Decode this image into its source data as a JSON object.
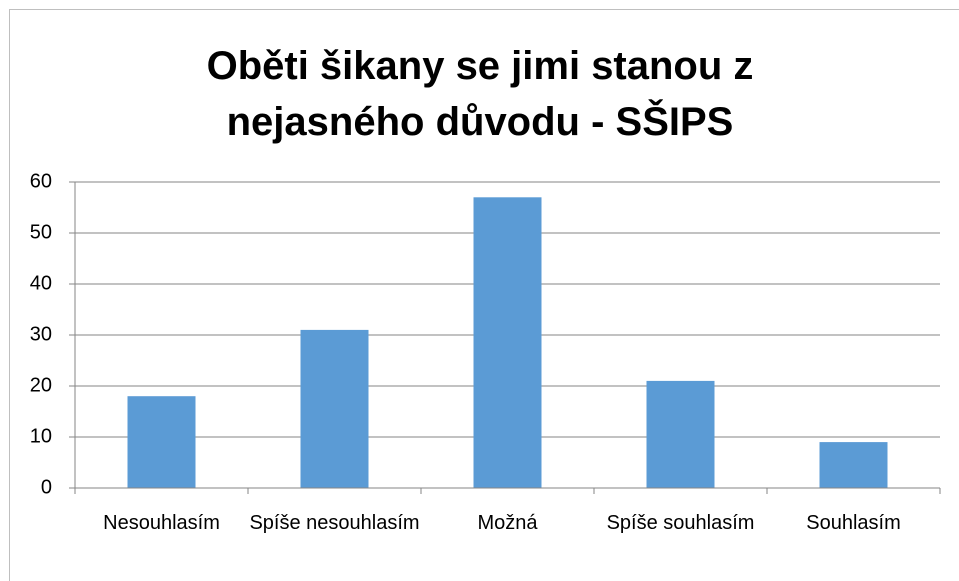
{
  "chart_data": {
    "type": "bar",
    "title": "Oběti šikany se jimi stanou z nejasného důvodu - SŠIPS",
    "categories": [
      "Nesouhlasím",
      "Spíše nesouhlasím",
      "Možná",
      "Spíše souhlasím",
      "Souhlasím"
    ],
    "values": [
      18,
      31,
      57,
      21,
      9
    ],
    "color": "#5b9bd5",
    "ylim": [
      0,
      60
    ],
    "yticks": [
      0,
      10,
      20,
      30,
      40,
      50,
      60
    ],
    "grid": true
  }
}
